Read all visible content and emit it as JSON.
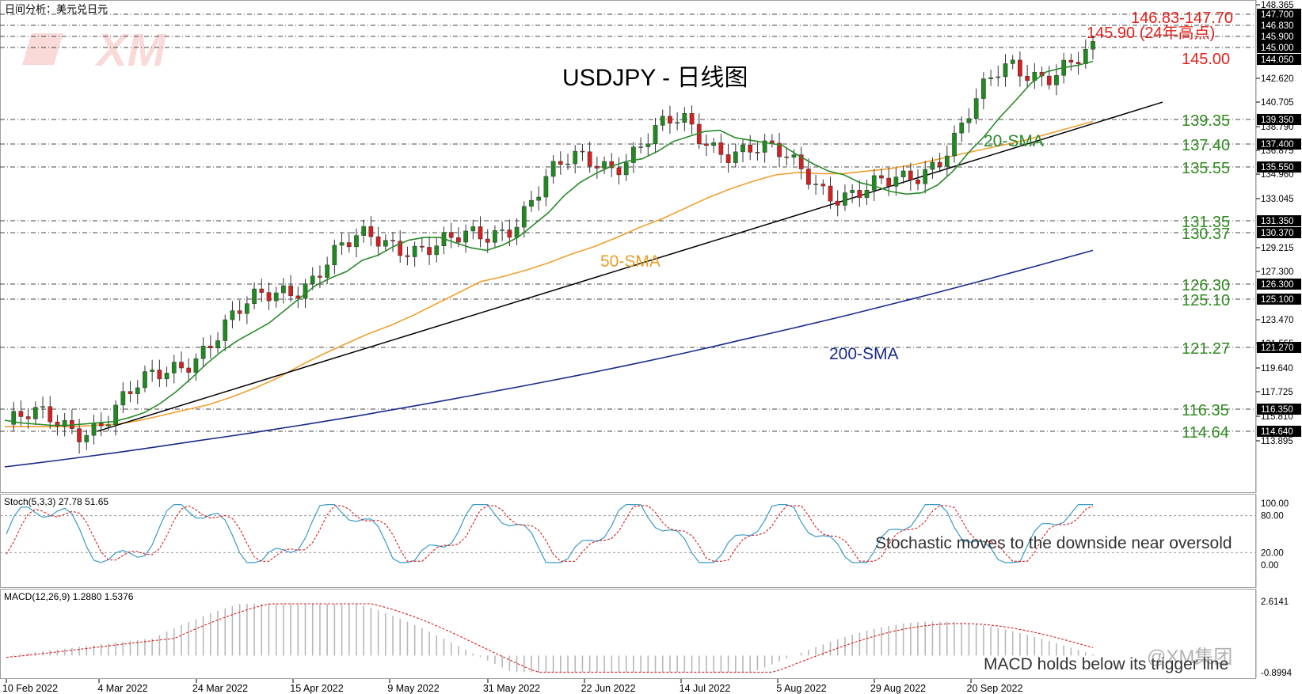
{
  "window_title": "日间分析：美元兑日元",
  "watermark": "XM",
  "chart_data": {
    "type": "candlestick",
    "title": "USDJPY - 日线图",
    "x_labels": [
      "10 Feb 2022",
      "4 Mar 2022",
      "24 Mar 2022",
      "15 Apr 2022",
      "9 May 2022",
      "31 May 2022",
      "22 Jun 2022",
      "14 Jul 2022",
      "5 Aug 2022",
      "29 Aug 2022",
      "20 Sep 2022"
    ],
    "price_axis": {
      "min": 112.0,
      "max": 148.365,
      "ticks": [
        "148.365",
        "147.700",
        "146.830",
        "145.900",
        "145.000",
        "144.050",
        "142.620",
        "140.705",
        "139.350",
        "138.790",
        "137.400",
        "136.875",
        "135.550",
        "134.960",
        "133.045",
        "131.350",
        "130.370",
        "129.215",
        "127.300",
        "126.300",
        "125.100",
        "123.470",
        "121.555",
        "121.270",
        "119.640",
        "117.725",
        "116.350",
        "115.810",
        "114.640",
        "113.895"
      ],
      "highlight_ticks": [
        "147.700",
        "146.830",
        "145.900",
        "145.000",
        "144.050",
        "139.350",
        "137.400",
        "135.550",
        "131.350",
        "130.370",
        "126.300",
        "125.100",
        "121.270",
        "116.350",
        "114.640"
      ]
    },
    "levels": [
      {
        "value": 147.7,
        "label": "",
        "color": "#e0201a"
      },
      {
        "value": 146.83,
        "label": "146.83-147.70",
        "color": "#e0201a"
      },
      {
        "value": 145.9,
        "label": "145.90 (24年高点)",
        "color": "#e0201a"
      },
      {
        "value": 145.0,
        "label": "145.00",
        "color": "#e0201a"
      },
      {
        "value": 139.35,
        "label": "139.35",
        "color": "#2e8b1e"
      },
      {
        "value": 137.4,
        "label": "137.40",
        "color": "#2e8b1e"
      },
      {
        "value": 135.55,
        "label": "135.55",
        "color": "#2e8b1e"
      },
      {
        "value": 131.35,
        "label": "131.35",
        "color": "#2e8b1e"
      },
      {
        "value": 130.37,
        "label": "130.37",
        "color": "#2e8b1e"
      },
      {
        "value": 126.3,
        "label": "126.30",
        "color": "#2e8b1e"
      },
      {
        "value": 125.1,
        "label": "125.10",
        "color": "#2e8b1e"
      },
      {
        "value": 121.27,
        "label": "121.27",
        "color": "#2e8b1e"
      },
      {
        "value": 116.35,
        "label": "116.35",
        "color": "#2e8b1e"
      },
      {
        "value": 114.64,
        "label": "114.64",
        "color": "#2e8b1e"
      }
    ],
    "moving_averages": [
      {
        "name": "20-SMA",
        "color": "#2a8a2a",
        "values": [
          115.5,
          115.3,
          115.2,
          115.1,
          115.1,
          115.2,
          115.3,
          115.4,
          115.7,
          116.1,
          116.8,
          117.7,
          118.8,
          120.0,
          121.0,
          121.8,
          122.5,
          123.2,
          124.2,
          125.2,
          126.2,
          126.8,
          127.3,
          128.2,
          128.6,
          129.3,
          129.8,
          130.0,
          130.0,
          129.6,
          129.2,
          129.0,
          129.4,
          130.0,
          131.0,
          132.0,
          133.3,
          134.3,
          135.0,
          135.6,
          136.0,
          136.2,
          136.8,
          137.6,
          138.0,
          138.4,
          138.5,
          137.9,
          137.7,
          137.5,
          137.3,
          136.5,
          135.8,
          135.2,
          134.9,
          134.3,
          134.0,
          133.6,
          133.4,
          133.5,
          134.1,
          135.2,
          136.7,
          138.0,
          139.5,
          140.8,
          142.2,
          143.1,
          143.4,
          143.6,
          143.9
        ]
      },
      {
        "name": "50-SMA",
        "color": "#f0a030",
        "values": [
          115.0,
          115.0,
          115.0,
          115.0,
          115.1,
          115.2,
          115.5,
          115.9,
          116.3,
          116.7,
          117.3,
          118.0,
          118.8,
          119.8,
          120.7,
          121.5,
          122.3,
          123.0,
          123.8,
          124.7,
          125.6,
          126.5,
          126.9,
          127.4,
          128.0,
          128.7,
          129.3,
          130.0,
          130.8,
          131.5,
          132.3,
          133.1,
          133.8,
          134.4,
          134.9,
          135.1,
          135.0,
          135.0,
          135.2,
          135.4,
          135.7,
          136.1,
          136.5,
          136.9,
          137.3,
          137.7,
          138.2,
          138.7,
          139.2
        ]
      },
      {
        "name": "200-SMA",
        "color": "#1a2a8a",
        "values": [
          112.0,
          129.0
        ]
      }
    ],
    "trendline": {
      "name": "uptrend",
      "color": "#000000",
      "from": [
        114.64
      ],
      "to": [
        140.7
      ]
    },
    "stochastic": {
      "label": "Stoch(5,3,3) 27.78 51.65",
      "k": 27.78,
      "d": 51.65,
      "axis_ticks": [
        "100.00",
        "80.00",
        "20.00",
        "0.00"
      ],
      "range": [
        0,
        100
      ],
      "bands": [
        80,
        20
      ]
    },
    "macd": {
      "label": "MACD(12,26,9) 1.2880 1.5376",
      "macd": 1.288,
      "signal": 1.5376,
      "axis_ticks": [
        "2.6141",
        "-0.8994"
      ],
      "range": [
        -0.8994,
        2.6141
      ]
    },
    "annotations": {
      "sma20": "20-SMA",
      "sma50": "50-SMA",
      "sma200": "200-SMA",
      "stoch_note": "Stochastic moves to the downside near oversold",
      "macd_note": "MACD holds below its trigger line"
    },
    "branding": "@XM集团"
  }
}
